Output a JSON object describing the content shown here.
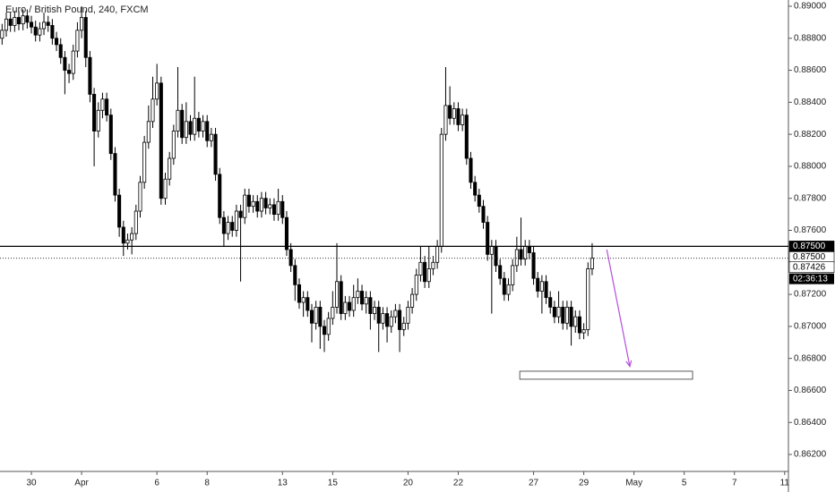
{
  "chart_data": {
    "type": "candlestick",
    "title": "Euro / British Pound, 240, FXCM",
    "up_color": "#ffffff",
    "down_color": "#000000",
    "edge_color": "#000000",
    "xlim": [
      -7.5,
      180.9
    ],
    "ylim": [
      0.86094,
      0.89039
    ],
    "yticks": [
      {
        "value": 0.862,
        "label": "0.86200"
      },
      {
        "value": 0.864,
        "label": "0.86400"
      },
      {
        "value": 0.866,
        "label": "0.86600"
      },
      {
        "value": 0.868,
        "label": "0.86800"
      },
      {
        "value": 0.87,
        "label": "0.87000"
      },
      {
        "value": 0.872,
        "label": "0.87200"
      },
      {
        "value": 0.876,
        "label": "0.87600"
      },
      {
        "value": 0.878,
        "label": "0.87800"
      },
      {
        "value": 0.88,
        "label": "0.88000"
      },
      {
        "value": 0.882,
        "label": "0.88200"
      },
      {
        "value": 0.884,
        "label": "0.88400"
      },
      {
        "value": 0.886,
        "label": "0.88600"
      },
      {
        "value": 0.888,
        "label": "0.88800"
      },
      {
        "value": 0.89,
        "label": "0.89000"
      }
    ],
    "xticks": [
      {
        "value": 0,
        "label": "30"
      },
      {
        "value": 12,
        "label": "Apr"
      },
      {
        "value": 30,
        "label": "6"
      },
      {
        "value": 42,
        "label": "8"
      },
      {
        "value": 60,
        "label": "13"
      },
      {
        "value": 72,
        "label": "15"
      },
      {
        "value": 90,
        "label": "20"
      },
      {
        "value": 102,
        "label": "22"
      },
      {
        "value": 120,
        "label": "27"
      },
      {
        "value": 132,
        "label": "29"
      },
      {
        "value": 144,
        "label": "May"
      },
      {
        "value": 156,
        "label": "5"
      },
      {
        "value": 168,
        "label": "7"
      },
      {
        "value": 180,
        "label": "11"
      }
    ],
    "x": [
      -7,
      -6,
      -5,
      -4,
      -3,
      -2,
      -1,
      0,
      1,
      2,
      3,
      4,
      5,
      6,
      7,
      8,
      9,
      10,
      11,
      12,
      13,
      14,
      15,
      16,
      17,
      18,
      19,
      20,
      21,
      22,
      23,
      24,
      25,
      26,
      27,
      28,
      29,
      30,
      31,
      32,
      33,
      34,
      35,
      36,
      37,
      38,
      39,
      40,
      41,
      42,
      43,
      44,
      45,
      46,
      47,
      48,
      49,
      50,
      51,
      52,
      53,
      54,
      55,
      56,
      57,
      58,
      59,
      60,
      61,
      62,
      63,
      64,
      65,
      66,
      67,
      68,
      69,
      70,
      71,
      72,
      73,
      74,
      75,
      76,
      77,
      78,
      79,
      80,
      81,
      82,
      83,
      84,
      85,
      86,
      87,
      88,
      89,
      90,
      91,
      92,
      93,
      94,
      95,
      96,
      97,
      98,
      99,
      100,
      101,
      102,
      103,
      104,
      105,
      106,
      107,
      108,
      109,
      110,
      111,
      112,
      113,
      114,
      115,
      116,
      117,
      118,
      119,
      120,
      121,
      122,
      123,
      124,
      125,
      126,
      127,
      128,
      129,
      130,
      131,
      132,
      133,
      134
    ],
    "open": [
      0.888,
      0.8885,
      0.8892,
      0.8888,
      0.8893,
      0.8889,
      0.8894,
      0.889,
      0.8887,
      0.8882,
      0.8886,
      0.889,
      0.8888,
      0.888,
      0.8876,
      0.8868,
      0.886,
      0.8858,
      0.8872,
      0.8885,
      0.8893,
      0.8868,
      0.8845,
      0.8822,
      0.8835,
      0.8842,
      0.8832,
      0.8808,
      0.8782,
      0.8762,
      0.8752,
      0.8754,
      0.8758,
      0.8772,
      0.879,
      0.8815,
      0.8828,
      0.8842,
      0.8852,
      0.878,
      0.8792,
      0.8805,
      0.8822,
      0.8835,
      0.8818,
      0.8828,
      0.882,
      0.883,
      0.8822,
      0.8828,
      0.8816,
      0.882,
      0.8795,
      0.8768,
      0.8758,
      0.8765,
      0.876,
      0.8772,
      0.8768,
      0.8782,
      0.8775,
      0.8778,
      0.8772,
      0.878,
      0.8774,
      0.8776,
      0.877,
      0.8778,
      0.8768,
      0.8748,
      0.8738,
      0.8726,
      0.8715,
      0.8718,
      0.871,
      0.8702,
      0.8712,
      0.87,
      0.8695,
      0.8705,
      0.8712,
      0.8728,
      0.8708,
      0.8715,
      0.871,
      0.8718,
      0.8722,
      0.8714,
      0.8718,
      0.8708,
      0.8712,
      0.8702,
      0.8708,
      0.87,
      0.8706,
      0.871,
      0.8698,
      0.8702,
      0.8712,
      0.872,
      0.8732,
      0.874,
      0.8728,
      0.8736,
      0.874,
      0.875,
      0.882,
      0.8838,
      0.883,
      0.8836,
      0.8826,
      0.8832,
      0.8805,
      0.879,
      0.8782,
      0.8775,
      0.8765,
      0.8745,
      0.875,
      0.8738,
      0.873,
      0.872,
      0.8726,
      0.8738,
      0.8748,
      0.8742,
      0.875,
      0.8746,
      0.873,
      0.8722,
      0.8728,
      0.8718,
      0.8712,
      0.8706,
      0.8712,
      0.8702,
      0.8712,
      0.87,
      0.8706,
      0.8696,
      0.8698,
      0.8736
    ],
    "high": [
      0.8889,
      0.8896,
      0.8896,
      0.8897,
      0.8897,
      0.8898,
      0.8898,
      0.8894,
      0.8891,
      0.889,
      0.8896,
      0.8894,
      0.8892,
      0.8884,
      0.888,
      0.8872,
      0.8864,
      0.8876,
      0.889,
      0.89,
      0.8897,
      0.8872,
      0.8849,
      0.884,
      0.8846,
      0.8846,
      0.8836,
      0.8812,
      0.8786,
      0.8766,
      0.8758,
      0.8762,
      0.8776,
      0.8794,
      0.8819,
      0.8838,
      0.8856,
      0.8864,
      0.8856,
      0.8796,
      0.8809,
      0.8826,
      0.8862,
      0.8839,
      0.884,
      0.8832,
      0.8856,
      0.8834,
      0.8832,
      0.8832,
      0.8824,
      0.8824,
      0.8799,
      0.8772,
      0.8769,
      0.8769,
      0.8776,
      0.8776,
      0.8786,
      0.8786,
      0.8782,
      0.8782,
      0.8784,
      0.8784,
      0.878,
      0.878,
      0.8786,
      0.8782,
      0.8772,
      0.8752,
      0.8742,
      0.873,
      0.8722,
      0.8722,
      0.8714,
      0.8716,
      0.8716,
      0.8704,
      0.8709,
      0.8722,
      0.8752,
      0.8732,
      0.8719,
      0.8719,
      0.8726,
      0.873,
      0.8726,
      0.8722,
      0.8722,
      0.8716,
      0.8716,
      0.8712,
      0.8712,
      0.871,
      0.8714,
      0.8714,
      0.8706,
      0.8716,
      0.8724,
      0.8736,
      0.875,
      0.8744,
      0.875,
      0.8744,
      0.8754,
      0.8824,
      0.8862,
      0.885,
      0.884,
      0.884,
      0.8836,
      0.8836,
      0.8809,
      0.8794,
      0.8786,
      0.8779,
      0.8769,
      0.8754,
      0.8754,
      0.8742,
      0.8734,
      0.873,
      0.8742,
      0.8756,
      0.8768,
      0.8754,
      0.8754,
      0.875,
      0.8734,
      0.8732,
      0.8732,
      0.8722,
      0.8716,
      0.8722,
      0.8716,
      0.8716,
      0.8716,
      0.871,
      0.871,
      0.8702,
      0.874,
      0.8752
    ],
    "low": [
      0.8876,
      0.8881,
      0.8884,
      0.8884,
      0.8885,
      0.8885,
      0.8886,
      0.8883,
      0.8878,
      0.8878,
      0.8882,
      0.8884,
      0.8876,
      0.8872,
      0.8864,
      0.8845,
      0.8852,
      0.8854,
      0.8868,
      0.888,
      0.8862,
      0.884,
      0.88,
      0.8818,
      0.883,
      0.8828,
      0.8804,
      0.8778,
      0.8756,
      0.8744,
      0.8748,
      0.8745,
      0.8754,
      0.8768,
      0.8786,
      0.8811,
      0.8824,
      0.8838,
      0.8776,
      0.8776,
      0.8788,
      0.8801,
      0.8818,
      0.8814,
      0.8814,
      0.8816,
      0.8816,
      0.8818,
      0.8818,
      0.8812,
      0.8812,
      0.8791,
      0.8764,
      0.875,
      0.8754,
      0.8756,
      0.8756,
      0.8728,
      0.8764,
      0.8771,
      0.8771,
      0.8768,
      0.8768,
      0.877,
      0.877,
      0.8766,
      0.8766,
      0.8764,
      0.8744,
      0.8734,
      0.8716,
      0.8711,
      0.8706,
      0.8706,
      0.869,
      0.8698,
      0.8686,
      0.8684,
      0.8691,
      0.8701,
      0.8708,
      0.8704,
      0.8704,
      0.8706,
      0.8706,
      0.8714,
      0.871,
      0.8708,
      0.8698,
      0.8704,
      0.8684,
      0.8698,
      0.869,
      0.8696,
      0.8702,
      0.8684,
      0.8694,
      0.8698,
      0.8708,
      0.8716,
      0.8728,
      0.8724,
      0.8724,
      0.8732,
      0.8736,
      0.8746,
      0.8816,
      0.8826,
      0.8826,
      0.8822,
      0.8822,
      0.8801,
      0.8786,
      0.8778,
      0.8771,
      0.8761,
      0.8741,
      0.8708,
      0.8734,
      0.8726,
      0.8716,
      0.8716,
      0.8722,
      0.8734,
      0.8738,
      0.8738,
      0.8742,
      0.8726,
      0.8718,
      0.8708,
      0.8714,
      0.8708,
      0.8702,
      0.8702,
      0.8698,
      0.8698,
      0.8688,
      0.8696,
      0.8692,
      0.8692,
      0.8694,
      0.8732
    ],
    "close": [
      0.8885,
      0.8892,
      0.8888,
      0.8893,
      0.8889,
      0.8894,
      0.889,
      0.8887,
      0.8882,
      0.8886,
      0.889,
      0.8888,
      0.888,
      0.8876,
      0.8868,
      0.886,
      0.8858,
      0.8872,
      0.8885,
      0.8893,
      0.8868,
      0.8845,
      0.8822,
      0.8835,
      0.8842,
      0.8832,
      0.8808,
      0.8782,
      0.8762,
      0.8752,
      0.8754,
      0.8758,
      0.8772,
      0.879,
      0.8815,
      0.8828,
      0.8842,
      0.8852,
      0.878,
      0.8792,
      0.8805,
      0.8822,
      0.8835,
      0.8818,
      0.8828,
      0.882,
      0.883,
      0.8822,
      0.8828,
      0.8816,
      0.882,
      0.8795,
      0.8768,
      0.8758,
      0.8765,
      0.876,
      0.8772,
      0.8768,
      0.8782,
      0.8775,
      0.8778,
      0.8772,
      0.878,
      0.8774,
      0.8776,
      0.877,
      0.8778,
      0.8768,
      0.8748,
      0.8738,
      0.8726,
      0.8715,
      0.8718,
      0.871,
      0.8702,
      0.8712,
      0.87,
      0.8695,
      0.8705,
      0.8712,
      0.8728,
      0.8708,
      0.8715,
      0.871,
      0.8718,
      0.8722,
      0.8714,
      0.8718,
      0.8708,
      0.8712,
      0.8702,
      0.8708,
      0.87,
      0.8706,
      0.871,
      0.8698,
      0.8702,
      0.8712,
      0.872,
      0.8732,
      0.874,
      0.8728,
      0.8736,
      0.874,
      0.875,
      0.882,
      0.8838,
      0.883,
      0.8836,
      0.8826,
      0.8832,
      0.8805,
      0.879,
      0.8782,
      0.8775,
      0.8765,
      0.8745,
      0.875,
      0.8738,
      0.873,
      0.872,
      0.8726,
      0.8738,
      0.8748,
      0.8742,
      0.875,
      0.8746,
      0.873,
      0.8722,
      0.8728,
      0.8718,
      0.8712,
      0.8706,
      0.8712,
      0.8702,
      0.8712,
      0.87,
      0.8706,
      0.8696,
      0.8698,
      0.8736,
      0.87426
    ],
    "level_line": {
      "value": 0.875,
      "label": "0.87500"
    },
    "level_tag": {
      "value": 0.875,
      "label": "0.87500"
    },
    "last_price": {
      "value": 0.87426,
      "label": "0.87426",
      "countdown": "02:36:13"
    },
    "target_zone": {
      "x": [
        116.7,
        158
      ],
      "y": [
        0.8667,
        0.8672
      ]
    },
    "arrow": {
      "x": [
        137.5,
        143
      ],
      "y": [
        0.8748,
        0.8675
      ],
      "color": "#b44fdc"
    }
  }
}
